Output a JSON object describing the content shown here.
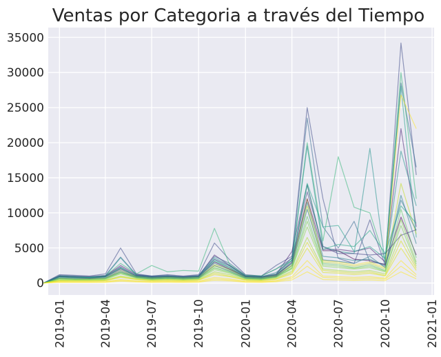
{
  "chart_data": {
    "type": "line",
    "title": "Ventas por Categoria a través del Tiempo",
    "xlabel": "",
    "ylabel": "",
    "xlim": [
      "2018-12-10",
      "2021-01-05"
    ],
    "ylim": [
      -1700,
      36400
    ],
    "grid": true,
    "legend": "none",
    "x_ticks": [
      "2019-01",
      "2019-04",
      "2019-07",
      "2019-10",
      "2020-01",
      "2020-04",
      "2020-07",
      "2020-10",
      "2021-01"
    ],
    "y_ticks": [
      0,
      5000,
      10000,
      15000,
      20000,
      25000,
      30000,
      35000
    ],
    "x": [
      "2018-12-01",
      "2019-01-01",
      "2019-02-01",
      "2019-03-01",
      "2019-04-01",
      "2019-05-01",
      "2019-06-01",
      "2019-07-01",
      "2019-08-01",
      "2019-09-01",
      "2019-10-01",
      "2019-11-01",
      "2019-12-01",
      "2020-01-01",
      "2020-02-01",
      "2020-03-01",
      "2020-04-01",
      "2020-05-01",
      "2020-06-01",
      "2020-07-01",
      "2020-08-01",
      "2020-09-01",
      "2020-10-01",
      "2020-11-01",
      "2020-12-01"
    ],
    "colormap": "viridis",
    "series": [
      {
        "color": "#3e4a89",
        "values": [
          0,
          1200,
          1100,
          1000,
          1300,
          5000,
          1300,
          1000,
          1200,
          1000,
          1200,
          5700,
          3300,
          1200,
          1000,
          2500,
          3800,
          25000,
          12000,
          3500,
          2800,
          9000,
          2500,
          34200,
          15400
        ]
      },
      {
        "color": "#482374",
        "values": [
          0,
          1000,
          900,
          800,
          1000,
          2500,
          1200,
          900,
          1000,
          900,
          1000,
          4000,
          2500,
          1000,
          900,
          1200,
          4500,
          14000,
          4800,
          4800,
          4500,
          5000,
          3000,
          22000,
          8000
        ]
      },
      {
        "color": "#31688e",
        "values": [
          0,
          1100,
          1000,
          900,
          1100,
          3700,
          1200,
          1000,
          1100,
          900,
          1100,
          3800,
          2800,
          1100,
          1000,
          2000,
          3500,
          23500,
          8000,
          5000,
          8800,
          3000,
          2700,
          28500,
          16500
        ]
      },
      {
        "color": "#35b779",
        "values": [
          0,
          1000,
          900,
          800,
          1000,
          2800,
          1300,
          2500,
          1600,
          1800,
          1700,
          7800,
          2600,
          1100,
          1000,
          2000,
          3200,
          20000,
          6000,
          18000,
          10800,
          10000,
          3200,
          30000,
          12000
        ]
      },
      {
        "color": "#21918c",
        "values": [
          0,
          1000,
          900,
          800,
          1000,
          3600,
          1100,
          900,
          1000,
          900,
          1000,
          3600,
          2500,
          1000,
          900,
          1500,
          3200,
          19500,
          5200,
          4500,
          4200,
          19200,
          2800,
          18800,
          11000
        ]
      },
      {
        "color": "#1fa088",
        "values": [
          0,
          900,
          800,
          800,
          900,
          2200,
          1000,
          800,
          900,
          800,
          900,
          3300,
          2200,
          900,
          800,
          1200,
          2800,
          14200,
          8000,
          8200,
          4500,
          5200,
          3500,
          28000,
          6500
        ]
      },
      {
        "color": "#fde725",
        "values": [
          0,
          700,
          600,
          600,
          700,
          1800,
          900,
          700,
          800,
          700,
          800,
          2600,
          2000,
          800,
          700,
          1000,
          2600,
          12000,
          3200,
          3000,
          2600,
          3000,
          2200,
          26800,
          22000
        ]
      },
      {
        "color": "#c2df23",
        "values": [
          0,
          700,
          600,
          600,
          700,
          1600,
          900,
          700,
          800,
          700,
          800,
          2400,
          1800,
          800,
          700,
          1000,
          2400,
          11000,
          3000,
          2800,
          2400,
          2800,
          2000,
          14200,
          7000
        ]
      },
      {
        "color": "#440154",
        "values": [
          0,
          900,
          800,
          700,
          900,
          2000,
          1000,
          800,
          900,
          800,
          900,
          3000,
          2000,
          900,
          800,
          1100,
          3000,
          12000,
          4600,
          4600,
          3400,
          3200,
          2600,
          9400,
          4000
        ]
      },
      {
        "color": "#277f8e",
        "values": [
          0,
          800,
          700,
          700,
          800,
          1800,
          900,
          700,
          800,
          700,
          800,
          2800,
          1900,
          800,
          700,
          1000,
          2800,
          11500,
          3800,
          3600,
          3200,
          3400,
          2400,
          12500,
          5600
        ]
      },
      {
        "color": "#5ec962",
        "values": [
          0,
          600,
          500,
          500,
          600,
          1500,
          800,
          600,
          700,
          600,
          700,
          2200,
          1600,
          700,
          600,
          900,
          2200,
          9500,
          2800,
          2600,
          2200,
          2600,
          1800,
          10500,
          3600
        ]
      },
      {
        "color": "#86d549",
        "values": [
          0,
          500,
          450,
          450,
          500,
          1300,
          700,
          500,
          600,
          500,
          600,
          1900,
          1400,
          600,
          500,
          800,
          2000,
          8000,
          2400,
          2200,
          2000,
          2200,
          1600,
          9000,
          3000
        ]
      },
      {
        "color": "#2a788e",
        "values": [
          0,
          700,
          600,
          600,
          700,
          1600,
          800,
          600,
          700,
          600,
          700,
          2500,
          1700,
          700,
          600,
          900,
          2500,
          10500,
          3300,
          3100,
          2800,
          3800,
          2200,
          11800,
          7500
        ]
      },
      {
        "color": "#aadc32",
        "values": [
          0,
          400,
          380,
          380,
          420,
          1000,
          600,
          420,
          500,
          420,
          500,
          1600,
          1200,
          500,
          420,
          700,
          1700,
          6500,
          2000,
          1800,
          1600,
          1800,
          1300,
          7000,
          2400
        ]
      },
      {
        "color": "#dde318",
        "values": [
          0,
          300,
          280,
          280,
          320,
          800,
          500,
          320,
          400,
          320,
          400,
          1200,
          900,
          400,
          320,
          550,
          1300,
          5000,
          1500,
          1400,
          1200,
          1400,
          1000,
          5000,
          1800
        ]
      },
      {
        "color": "#fde725",
        "values": [
          0,
          200,
          180,
          180,
          200,
          500,
          300,
          200,
          250,
          200,
          250,
          800,
          600,
          250,
          200,
          350,
          900,
          3200,
          1000,
          900,
          800,
          900,
          700,
          3200,
          1200
        ]
      },
      {
        "color": "#fde725",
        "values": [
          0,
          100,
          90,
          90,
          100,
          250,
          150,
          100,
          120,
          100,
          120,
          400,
          300,
          120,
          100,
          180,
          450,
          1600,
          500,
          450,
          400,
          450,
          350,
          1600,
          600
        ]
      },
      {
        "color": "#414487",
        "values": [
          0,
          1000,
          900,
          900,
          1000,
          2300,
          1100,
          900,
          1000,
          900,
          1000,
          3400,
          2400,
          1000,
          900,
          1300,
          3600,
          13000,
          5200,
          4200,
          4200,
          4000,
          4200,
          6800,
          7600
        ]
      },
      {
        "color": "#22a884",
        "values": [
          0,
          900,
          800,
          800,
          900,
          2100,
          1000,
          800,
          900,
          800,
          900,
          3100,
          2200,
          900,
          800,
          1200,
          3300,
          14000,
          4800,
          5500,
          5200,
          7500,
          4200,
          11000,
          8500
        ]
      },
      {
        "color": "#7ad151",
        "values": [
          0,
          600,
          550,
          550,
          600,
          1400,
          750,
          550,
          650,
          550,
          650,
          2100,
          1500,
          650,
          550,
          850,
          2100,
          8800,
          2600,
          2400,
          2100,
          2400,
          1700,
          8200,
          2700
        ]
      },
      {
        "color": "#d8e219",
        "values": [
          0,
          350,
          330,
          330,
          360,
          900,
          550,
          360,
          450,
          360,
          450,
          1400,
          1000,
          450,
          360,
          600,
          1500,
          5800,
          1800,
          1600,
          1400,
          1600,
          1100,
          6000,
          2100
        ]
      },
      {
        "color": "#fde725",
        "values": [
          0,
          150,
          140,
          140,
          160,
          400,
          250,
          160,
          200,
          160,
          200,
          600,
          450,
          200,
          160,
          280,
          700,
          2400,
          800,
          700,
          600,
          700,
          550,
          2400,
          900
        ]
      }
    ]
  }
}
